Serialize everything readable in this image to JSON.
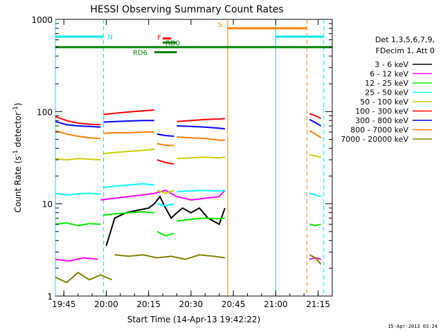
{
  "chart_data": {
    "type": "line",
    "title": "HESSI Observing Summary Count Rates",
    "xlabel": "Start Time (14-Apr-13 19:42:22)",
    "ylabel": "Count Rate (s-1 detector-1)",
    "yscale": "log",
    "ylim": [
      1,
      1000
    ],
    "xlim_minutes": [
      "19:42",
      "21:20"
    ],
    "x_tick_labels": [
      "19:45",
      "20:00",
      "20:15",
      "20:30",
      "20:45",
      "21:00",
      "21:15"
    ],
    "y_tick_labels": [
      "1",
      "10",
      "100",
      "1000"
    ],
    "legend": {
      "header1": "Det 1,3,5,6,7,9,",
      "header2": "FDecim 1, Att 0",
      "position": "right"
    },
    "footer_timestamp": "15-Apr-2013 03:24",
    "flags": [
      {
        "label": "N",
        "color": "#00e5ee",
        "y": 650,
        "segments": [
          [
            "19:42",
            "19:59"
          ],
          [
            "21:00",
            "21:17"
          ]
        ]
      },
      {
        "label": "S",
        "color": "#ff8000",
        "y": 800,
        "segments": [
          [
            "20:43",
            "21:11"
          ]
        ]
      },
      {
        "label": "RD6",
        "color": "#008000",
        "y": 500,
        "segments": [
          [
            "19:42",
            "21:20"
          ]
        ]
      },
      {
        "label": "",
        "color": "#008000",
        "y": 440,
        "segments": [
          [
            "20:17",
            "20:25"
          ]
        ]
      },
      {
        "label": "F",
        "color": "#ff0000",
        "y": 620,
        "segments": [
          [
            "20:20",
            "20:23"
          ]
        ]
      },
      {
        "label": "RD0",
        "color": "#008000",
        "y": 560,
        "segments": [
          [
            "20:20",
            "20:25"
          ]
        ]
      }
    ],
    "vertical_markers": [
      {
        "time": "19:42",
        "color": "#00e5ee",
        "style": "solid"
      },
      {
        "time": "19:59",
        "color": "#00e5ee",
        "style": "dashed"
      },
      {
        "time": "20:43",
        "color": "#ff8000",
        "style": "solid"
      },
      {
        "time": "21:00",
        "color": "#00e5ee",
        "style": "solid"
      },
      {
        "time": "21:11",
        "color": "#ff8000",
        "style": "dashed"
      },
      {
        "time": "21:17",
        "color": "#00e5ee",
        "style": "dashed"
      }
    ],
    "series": [
      {
        "name": "3 - 6 keV",
        "color": "#000000",
        "segments": [
          {
            "times": [
              "20:00",
              "20:03",
              "20:07",
              "20:11",
              "20:15",
              "20:17",
              "20:19",
              "20:21",
              "20:23",
              "20:25",
              "20:27",
              "20:30",
              "20:33",
              "20:36",
              "20:40",
              "20:42"
            ],
            "values": [
              3.5,
              7,
              8,
              8.5,
              9,
              10,
              12,
              9,
              7,
              8,
              9,
              8,
              9,
              7,
              6,
              9
            ]
          }
        ]
      },
      {
        "name": "6 - 12 keV",
        "color": "#ff00ff",
        "segments": [
          {
            "times": [
              "19:42",
              "19:47",
              "19:52",
              "19:57"
            ],
            "values": [
              2.5,
              2.4,
              2.6,
              2.5
            ]
          },
          {
            "times": [
              "19:58",
              "20:03",
              "20:08",
              "20:13",
              "20:17",
              "20:21",
              "20:25",
              "20:30",
              "20:35",
              "20:40",
              "20:42"
            ],
            "values": [
              11,
              11.5,
              12,
              12.5,
              13,
              14,
              12,
              11,
              11.5,
              12,
              14
            ]
          },
          {
            "times": [
              "21:12",
              "21:14",
              "21:16"
            ],
            "values": [
              2.5,
              2.6,
              2.5
            ]
          }
        ]
      },
      {
        "name": "12 - 25 keV",
        "color": "#00ee00",
        "segments": [
          {
            "times": [
              "19:42",
              "19:46",
              "19:50",
              "19:54",
              "19:58"
            ],
            "values": [
              6,
              6.2,
              5.8,
              6.1,
              6
            ]
          },
          {
            "times": [
              "19:59",
              "20:03",
              "20:08",
              "20:13",
              "20:17"
            ],
            "values": [
              7.5,
              7.8,
              8,
              8.2,
              8
            ]
          },
          {
            "times": [
              "20:18",
              "20:21",
              "20:24"
            ],
            "values": [
              5,
              4.5,
              4.8
            ]
          },
          {
            "times": [
              "20:25",
              "20:30",
              "20:35",
              "20:40",
              "20:42"
            ],
            "values": [
              6.5,
              6.8,
              7,
              6.9,
              7
            ]
          },
          {
            "times": [
              "21:12",
              "21:14",
              "21:16"
            ],
            "values": [
              6,
              5.8,
              6
            ]
          }
        ]
      },
      {
        "name": "25 - 50 keV",
        "color": "#00ffff",
        "segments": [
          {
            "times": [
              "19:42",
              "19:46",
              "19:50",
              "19:54",
              "19:58"
            ],
            "values": [
              13,
              12.5,
              12.8,
              13,
              12.7
            ]
          },
          {
            "times": [
              "19:59",
              "20:03",
              "20:08",
              "20:13",
              "20:17"
            ],
            "values": [
              15,
              15.5,
              16,
              16.5,
              16
            ]
          },
          {
            "times": [
              "20:18",
              "20:21",
              "20:24"
            ],
            "values": [
              10,
              9.5,
              10
            ]
          },
          {
            "times": [
              "20:25",
              "20:30",
              "20:35",
              "20:40",
              "20:42"
            ],
            "values": [
              13.5,
              13.8,
              14,
              13.7,
              14
            ]
          },
          {
            "times": [
              "21:12",
              "21:14",
              "21:16"
            ],
            "values": [
              13,
              12.5,
              12
            ]
          }
        ]
      },
      {
        "name": "50 - 100 keV",
        "color": "#cccc00",
        "segments": [
          {
            "times": [
              "19:42",
              "19:46",
              "19:50",
              "19:54",
              "19:58"
            ],
            "values": [
              31,
              30,
              31,
              30.5,
              30
            ]
          },
          {
            "times": [
              "19:59",
              "20:03",
              "20:08",
              "20:13",
              "20:17"
            ],
            "values": [
              35,
              36,
              37,
              38,
              39
            ]
          },
          {
            "times": [
              "20:18",
              "20:21",
              "20:24"
            ],
            "values": [
              14,
              13,
              14
            ]
          },
          {
            "times": [
              "20:25",
              "20:30",
              "20:35",
              "20:40",
              "20:42"
            ],
            "values": [
              31,
              31.5,
              32,
              31.5,
              32
            ]
          },
          {
            "times": [
              "21:12",
              "21:14",
              "21:16"
            ],
            "values": [
              34,
              33,
              32
            ]
          }
        ]
      },
      {
        "name": "100 - 300 keV",
        "color": "#ff0000",
        "segments": [
          {
            "times": [
              "19:42",
              "19:46",
              "19:50",
              "19:54",
              "19:58"
            ],
            "values": [
              88,
              80,
              75,
              73,
              72
            ]
          },
          {
            "times": [
              "19:59",
              "20:03",
              "20:08",
              "20:13",
              "20:17"
            ],
            "values": [
              93,
              96,
              99,
              102,
              104
            ]
          },
          {
            "times": [
              "20:18",
              "20:21",
              "20:24"
            ],
            "values": [
              30,
              28,
              27
            ]
          },
          {
            "times": [
              "20:25",
              "20:30",
              "20:35",
              "20:40",
              "20:42"
            ],
            "values": [
              78,
              80,
              82,
              83,
              84
            ]
          },
          {
            "times": [
              "21:12",
              "21:14",
              "21:16"
            ],
            "values": [
              95,
              90,
              84
            ]
          }
        ]
      },
      {
        "name": "300 - 800 keV",
        "color": "#0000ff",
        "segments": [
          {
            "times": [
              "19:42",
              "19:46",
              "19:50",
              "19:54",
              "19:58"
            ],
            "values": [
              78,
              72,
              70,
              69,
              68
            ]
          },
          {
            "times": [
              "19:59",
              "20:03",
              "20:08",
              "20:13",
              "20:17"
            ],
            "values": [
              77,
              78,
              79,
              80,
              80
            ]
          },
          {
            "times": [
              "20:18",
              "20:21",
              "20:24"
            ],
            "values": [
              57,
              55,
              54
            ]
          },
          {
            "times": [
              "20:25",
              "20:30",
              "20:35",
              "20:40",
              "20:42"
            ],
            "values": [
              70,
              69,
              68,
              66,
              65
            ]
          },
          {
            "times": [
              "21:12",
              "21:14",
              "21:16"
            ],
            "values": [
              82,
              76,
              70
            ]
          }
        ]
      },
      {
        "name": "800 - 7000 keV",
        "color": "#ff8000",
        "segments": [
          {
            "times": [
              "19:42",
              "19:46",
              "19:50",
              "19:54",
              "19:58"
            ],
            "values": [
              62,
              57,
              54,
              52,
              51
            ]
          },
          {
            "times": [
              "19:59",
              "20:03",
              "20:08",
              "20:13",
              "20:17"
            ],
            "values": [
              58,
              59,
              59,
              60,
              60
            ]
          },
          {
            "times": [
              "20:18",
              "20:21",
              "20:24"
            ],
            "values": [
              45,
              43,
              43
            ]
          },
          {
            "times": [
              "20:25",
              "20:30",
              "20:35",
              "20:40",
              "20:42"
            ],
            "values": [
              53,
              52,
              51,
              49,
              49
            ]
          },
          {
            "times": [
              "21:12",
              "21:14",
              "21:16"
            ],
            "values": [
              62,
              57,
              52
            ]
          }
        ]
      },
      {
        "name": "7000 - 20000 keV",
        "color": "#808000",
        "segments": [
          {
            "times": [
              "19:42",
              "19:46",
              "19:50",
              "19:54",
              "19:58",
              "20:02"
            ],
            "values": [
              1.6,
              1.4,
              1.8,
              1.5,
              1.7,
              1.5
            ]
          },
          {
            "times": [
              "20:03",
              "20:08",
              "20:13",
              "20:18",
              "20:23",
              "20:28",
              "20:33",
              "20:38",
              "20:42"
            ],
            "values": [
              2.8,
              2.7,
              2.8,
              2.6,
              2.7,
              2.5,
              2.8,
              2.7,
              2.6
            ]
          },
          {
            "times": [
              "21:12",
              "21:14",
              "21:16"
            ],
            "values": [
              2.8,
              2.6,
              2.2
            ]
          }
        ]
      }
    ]
  }
}
